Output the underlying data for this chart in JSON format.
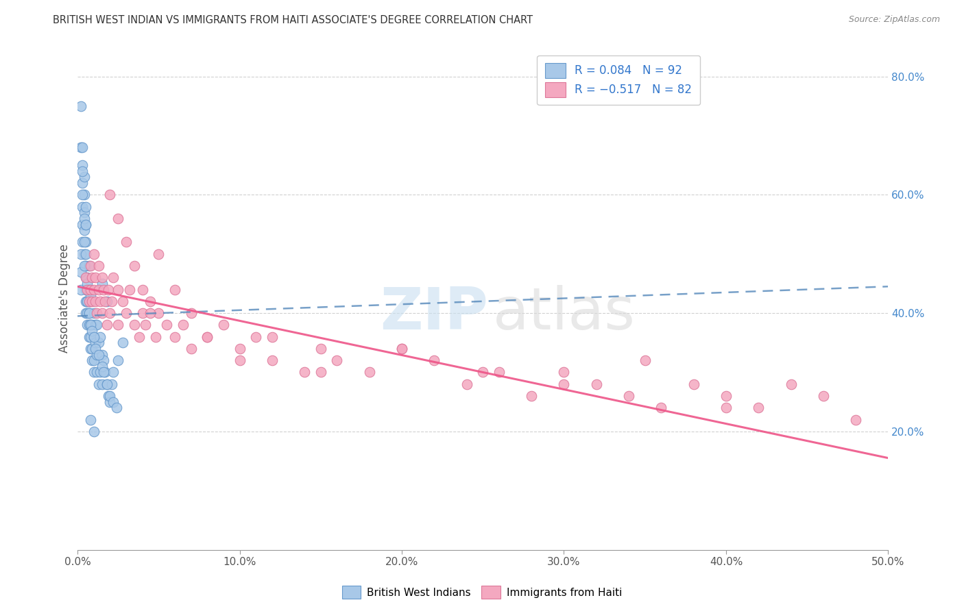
{
  "title": "BRITISH WEST INDIAN VS IMMIGRANTS FROM HAITI ASSOCIATE'S DEGREE CORRELATION CHART",
  "source": "Source: ZipAtlas.com",
  "ylabel": "Associate's Degree",
  "xlim": [
    0.0,
    0.5
  ],
  "ylim": [
    0.0,
    0.85
  ],
  "xtick_vals": [
    0.0,
    0.1,
    0.2,
    0.3,
    0.4,
    0.5
  ],
  "xtick_labels": [
    "0.0%",
    "10.0%",
    "20.0%",
    "30.0%",
    "40.0%",
    "50.0%"
  ],
  "ytick_vals": [
    0.2,
    0.4,
    0.6,
    0.8
  ],
  "ytick_labels": [
    "20.0%",
    "40.0%",
    "60.0%",
    "80.0%"
  ],
  "blue_color": "#a8c8e8",
  "blue_edge_color": "#6699cc",
  "pink_color": "#f4a8c0",
  "pink_edge_color": "#dd7799",
  "blue_line_color": "#5588bb",
  "pink_line_color": "#ee5588",
  "watermark_zip_color": "#c8dff0",
  "watermark_atlas_color": "#d8d8d8",
  "background_color": "#ffffff",
  "grid_color": "#cccccc",
  "blue_trend_x0": 0.0,
  "blue_trend_x1": 0.5,
  "blue_trend_y0": 0.395,
  "blue_trend_y1": 0.445,
  "pink_trend_x0": 0.0,
  "pink_trend_x1": 0.5,
  "pink_trend_y0": 0.445,
  "pink_trend_y1": 0.155,
  "legend_label1": "R = 0.084   N = 92",
  "legend_label2": "R = −0.517   N = 82",
  "bottom_label1": "British West Indians",
  "bottom_label2": "Immigrants from Haiti",
  "blue_scatter_x": [
    0.002,
    0.002,
    0.003,
    0.003,
    0.003,
    0.003,
    0.003,
    0.004,
    0.004,
    0.004,
    0.004,
    0.004,
    0.005,
    0.005,
    0.005,
    0.005,
    0.005,
    0.005,
    0.005,
    0.006,
    0.006,
    0.006,
    0.006,
    0.006,
    0.007,
    0.007,
    0.007,
    0.007,
    0.007,
    0.008,
    0.008,
    0.008,
    0.008,
    0.009,
    0.009,
    0.009,
    0.01,
    0.01,
    0.01,
    0.01,
    0.011,
    0.011,
    0.012,
    0.012,
    0.012,
    0.013,
    0.013,
    0.014,
    0.014,
    0.015,
    0.015,
    0.016,
    0.017,
    0.018,
    0.019,
    0.02,
    0.021,
    0.022,
    0.025,
    0.028,
    0.002,
    0.002,
    0.002,
    0.003,
    0.003,
    0.003,
    0.004,
    0.004,
    0.004,
    0.005,
    0.005,
    0.005,
    0.006,
    0.006,
    0.007,
    0.007,
    0.008,
    0.008,
    0.009,
    0.01,
    0.011,
    0.013,
    0.015,
    0.016,
    0.018,
    0.02,
    0.022,
    0.024,
    0.015,
    0.018,
    0.008,
    0.01
  ],
  "blue_scatter_y": [
    0.75,
    0.68,
    0.65,
    0.62,
    0.58,
    0.55,
    0.52,
    0.63,
    0.6,
    0.57,
    0.54,
    0.5,
    0.48,
    0.46,
    0.44,
    0.42,
    0.4,
    0.52,
    0.55,
    0.38,
    0.4,
    0.42,
    0.44,
    0.46,
    0.36,
    0.38,
    0.4,
    0.42,
    0.48,
    0.34,
    0.36,
    0.38,
    0.42,
    0.32,
    0.34,
    0.38,
    0.3,
    0.32,
    0.36,
    0.4,
    0.35,
    0.38,
    0.3,
    0.33,
    0.38,
    0.28,
    0.35,
    0.3,
    0.36,
    0.28,
    0.33,
    0.32,
    0.3,
    0.28,
    0.26,
    0.25,
    0.28,
    0.3,
    0.32,
    0.35,
    0.5,
    0.47,
    0.44,
    0.68,
    0.64,
    0.6,
    0.56,
    0.52,
    0.48,
    0.58,
    0.55,
    0.5,
    0.45,
    0.42,
    0.44,
    0.4,
    0.43,
    0.38,
    0.37,
    0.36,
    0.34,
    0.33,
    0.31,
    0.3,
    0.28,
    0.26,
    0.25,
    0.24,
    0.45,
    0.42,
    0.22,
    0.2
  ],
  "pink_scatter_x": [
    0.005,
    0.006,
    0.007,
    0.008,
    0.008,
    0.009,
    0.009,
    0.01,
    0.01,
    0.011,
    0.011,
    0.012,
    0.013,
    0.013,
    0.014,
    0.015,
    0.015,
    0.016,
    0.017,
    0.018,
    0.019,
    0.02,
    0.021,
    0.022,
    0.025,
    0.025,
    0.028,
    0.03,
    0.032,
    0.035,
    0.038,
    0.04,
    0.042,
    0.045,
    0.048,
    0.05,
    0.055,
    0.06,
    0.065,
    0.07,
    0.08,
    0.09,
    0.1,
    0.11,
    0.12,
    0.14,
    0.15,
    0.16,
    0.18,
    0.2,
    0.22,
    0.24,
    0.26,
    0.28,
    0.3,
    0.32,
    0.34,
    0.36,
    0.38,
    0.4,
    0.42,
    0.44,
    0.46,
    0.48,
    0.02,
    0.025,
    0.03,
    0.035,
    0.04,
    0.045,
    0.05,
    0.06,
    0.07,
    0.08,
    0.1,
    0.12,
    0.15,
    0.2,
    0.25,
    0.3,
    0.35,
    0.4
  ],
  "pink_scatter_y": [
    0.46,
    0.44,
    0.42,
    0.48,
    0.44,
    0.46,
    0.42,
    0.44,
    0.5,
    0.42,
    0.46,
    0.4,
    0.44,
    0.48,
    0.42,
    0.46,
    0.4,
    0.44,
    0.42,
    0.38,
    0.44,
    0.4,
    0.42,
    0.46,
    0.38,
    0.44,
    0.42,
    0.4,
    0.44,
    0.38,
    0.36,
    0.4,
    0.38,
    0.42,
    0.36,
    0.4,
    0.38,
    0.36,
    0.38,
    0.34,
    0.36,
    0.38,
    0.34,
    0.36,
    0.32,
    0.3,
    0.34,
    0.32,
    0.3,
    0.34,
    0.32,
    0.28,
    0.3,
    0.26,
    0.3,
    0.28,
    0.26,
    0.24,
    0.28,
    0.26,
    0.24,
    0.28,
    0.26,
    0.22,
    0.6,
    0.56,
    0.52,
    0.48,
    0.44,
    0.4,
    0.5,
    0.44,
    0.4,
    0.36,
    0.32,
    0.36,
    0.3,
    0.34,
    0.3,
    0.28,
    0.32,
    0.24
  ]
}
